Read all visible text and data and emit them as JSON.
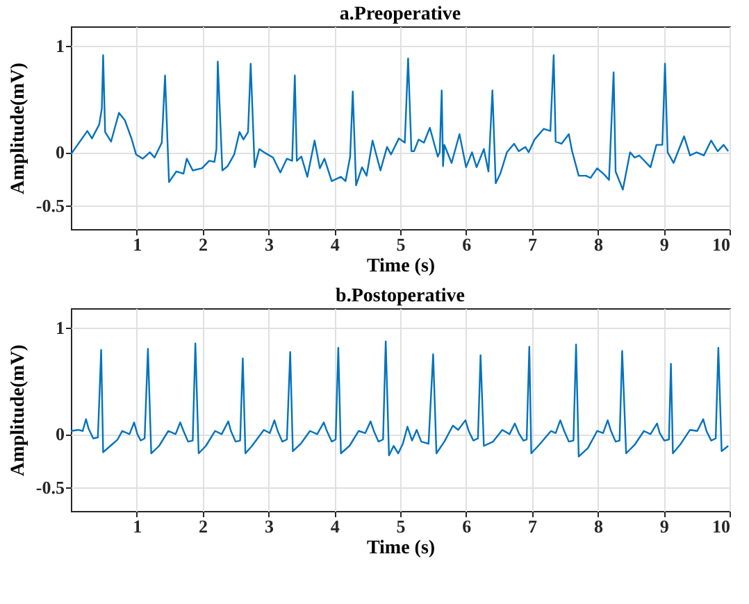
{
  "chart_data": [
    {
      "type": "line",
      "title": "a.Preoperative",
      "xlabel": "Time (s)",
      "ylabel": "Amplitude(mV)",
      "xlim": [
        0,
        10
      ],
      "ylim": [
        -0.72,
        1.18
      ],
      "xticks": [
        1,
        2,
        3,
        4,
        5,
        6,
        7,
        8,
        9,
        10
      ],
      "yticks": [
        -0.5,
        0,
        1
      ],
      "grid": true,
      "x": [
        0.0,
        0.25,
        0.32,
        0.43,
        0.47,
        0.49,
        0.52,
        0.61,
        0.73,
        0.82,
        0.92,
        0.99,
        1.09,
        1.2,
        1.27,
        1.38,
        1.43,
        1.49,
        1.6,
        1.71,
        1.76,
        1.85,
        1.99,
        2.1,
        2.18,
        2.21,
        2.23,
        2.3,
        2.38,
        2.48,
        2.56,
        2.62,
        2.69,
        2.73,
        2.79,
        2.86,
        2.96,
        3.07,
        3.18,
        3.28,
        3.36,
        3.4,
        3.43,
        3.5,
        3.59,
        3.7,
        3.78,
        3.85,
        3.96,
        4.1,
        4.17,
        4.24,
        4.28,
        4.33,
        4.42,
        4.49,
        4.58,
        4.7,
        4.8,
        4.86,
        4.98,
        5.07,
        5.12,
        5.17,
        5.21,
        5.28,
        5.36,
        5.45,
        5.57,
        5.6,
        5.63,
        5.65,
        5.67,
        5.78,
        5.9,
        6.0,
        6.09,
        6.16,
        6.27,
        6.34,
        6.4,
        6.45,
        6.52,
        6.62,
        6.73,
        6.8,
        6.9,
        6.95,
        7.04,
        7.18,
        7.28,
        7.33,
        7.36,
        7.45,
        7.56,
        7.61,
        7.71,
        7.82,
        7.89,
        7.99,
        8.1,
        8.17,
        8.24,
        8.27,
        8.38,
        8.49,
        8.56,
        8.63,
        8.8,
        8.89,
        8.98,
        9.02,
        9.06,
        9.15,
        9.31,
        9.4,
        9.5,
        9.61,
        9.72,
        9.82,
        9.91,
        9.98
      ],
      "series": [
        {
          "color": "#0072bd",
          "values": [
            -0.02,
            0.2,
            0.13,
            0.26,
            0.41,
            0.91,
            0.19,
            0.1,
            0.37,
            0.3,
            0.13,
            -0.02,
            -0.06,
            0.0,
            -0.05,
            0.09,
            0.72,
            -0.28,
            -0.18,
            -0.2,
            -0.06,
            -0.17,
            -0.15,
            -0.08,
            -0.09,
            0.03,
            0.85,
            -0.17,
            -0.13,
            -0.02,
            0.19,
            0.12,
            0.19,
            0.83,
            -0.14,
            0.03,
            -0.01,
            -0.05,
            -0.19,
            -0.06,
            -0.08,
            0.72,
            -0.08,
            -0.04,
            -0.23,
            0.11,
            -0.15,
            -0.06,
            -0.27,
            -0.23,
            -0.27,
            -0.04,
            0.57,
            -0.31,
            -0.14,
            -0.22,
            0.11,
            -0.17,
            0.05,
            -0.02,
            0.13,
            0.09,
            0.88,
            0.01,
            0.01,
            0.12,
            0.09,
            0.23,
            -0.04,
            0.0,
            0.58,
            -0.13,
            0.07,
            -0.1,
            0.17,
            -0.14,
            0.0,
            -0.14,
            0.03,
            -0.18,
            0.58,
            -0.29,
            -0.2,
            0.0,
            0.08,
            0.01,
            0.05,
            0.0,
            0.12,
            0.22,
            0.2,
            0.91,
            0.1,
            0.08,
            0.17,
            0.01,
            -0.22,
            -0.22,
            -0.24,
            -0.15,
            -0.21,
            -0.26,
            0.75,
            -0.18,
            -0.35,
            0.0,
            -0.05,
            -0.03,
            -0.14,
            0.07,
            0.07,
            0.83,
            0.0,
            -0.1,
            0.15,
            -0.03,
            0.0,
            -0.03,
            0.11,
            0.01,
            0.07,
            0.01
          ]
        }
      ]
    },
    {
      "type": "line",
      "title": "b.Postoperative",
      "xlabel": "Time (s)",
      "ylabel": "Amplitude(mV)",
      "xlim": [
        0,
        10
      ],
      "ylim": [
        -0.72,
        1.18
      ],
      "xticks": [
        1,
        2,
        3,
        4,
        5,
        6,
        7,
        8,
        9,
        10
      ],
      "yticks": [
        -0.5,
        0,
        1
      ],
      "grid": true,
      "x": [
        0.0,
        0.11,
        0.18,
        0.23,
        0.27,
        0.34,
        0.41,
        0.46,
        0.49,
        0.6,
        0.71,
        0.78,
        0.89,
        0.96,
        1.01,
        1.06,
        1.12,
        1.17,
        1.22,
        1.34,
        1.48,
        1.59,
        1.66,
        1.71,
        1.78,
        1.85,
        1.89,
        1.94,
        2.05,
        2.19,
        2.29,
        2.39,
        2.43,
        2.5,
        2.57,
        2.61,
        2.65,
        2.75,
        2.93,
        3.02,
        3.09,
        3.14,
        3.21,
        3.28,
        3.33,
        3.37,
        3.49,
        3.63,
        3.74,
        3.84,
        3.88,
        3.96,
        4.02,
        4.06,
        4.1,
        4.23,
        4.37,
        4.47,
        4.55,
        4.6,
        4.67,
        4.74,
        4.78,
        4.83,
        4.9,
        4.97,
        5.04,
        5.11,
        5.18,
        5.25,
        5.32,
        5.43,
        5.5,
        5.55,
        5.67,
        5.8,
        5.88,
        5.99,
        6.04,
        6.11,
        6.18,
        6.22,
        6.27,
        6.41,
        6.55,
        6.66,
        6.74,
        6.8,
        6.87,
        6.92,
        6.96,
        6.99,
        7.11,
        7.29,
        7.36,
        7.43,
        7.49,
        7.56,
        7.63,
        7.67,
        7.71,
        7.85,
        7.99,
        8.08,
        8.15,
        8.2,
        8.27,
        8.33,
        8.37,
        8.43,
        8.56,
        8.7,
        8.8,
        8.9,
        8.94,
        9.01,
        9.08,
        9.11,
        9.14,
        9.26,
        9.4,
        9.51,
        9.6,
        9.65,
        9.72,
        9.79,
        9.83,
        9.88,
        9.98
      ],
      "series": [
        {
          "color": "#0072bd",
          "values": [
            0.03,
            0.04,
            0.03,
            0.14,
            0.05,
            -0.04,
            -0.03,
            0.79,
            -0.17,
            -0.11,
            -0.05,
            0.03,
            0.0,
            0.11,
            0.0,
            -0.06,
            -0.04,
            0.8,
            -0.18,
            -0.11,
            0.03,
            0.0,
            0.11,
            0.03,
            -0.07,
            -0.06,
            0.85,
            -0.18,
            -0.11,
            0.03,
            0.0,
            0.12,
            0.03,
            -0.07,
            -0.06,
            0.71,
            -0.18,
            -0.11,
            0.04,
            0.01,
            0.13,
            0.03,
            -0.07,
            -0.05,
            0.77,
            -0.16,
            -0.09,
            0.03,
            0.0,
            0.11,
            0.04,
            -0.07,
            -0.05,
            0.81,
            -0.18,
            -0.11,
            0.03,
            0.01,
            0.12,
            0.03,
            -0.07,
            -0.05,
            0.87,
            -0.2,
            -0.11,
            -0.18,
            -0.09,
            0.07,
            -0.06,
            0.04,
            -0.07,
            -0.09,
            0.75,
            -0.18,
            -0.07,
            0.08,
            0.04,
            0.13,
            0.03,
            -0.06,
            -0.04,
            0.74,
            -0.11,
            -0.07,
            0.04,
            0.0,
            0.1,
            0.01,
            -0.06,
            -0.05,
            0.82,
            -0.18,
            -0.1,
            0.03,
            0.01,
            0.13,
            0.03,
            -0.07,
            -0.06,
            0.84,
            -0.21,
            -0.13,
            0.03,
            0.01,
            0.13,
            0.03,
            -0.07,
            -0.06,
            0.78,
            -0.18,
            -0.1,
            0.03,
            0.0,
            0.1,
            0.01,
            -0.06,
            -0.05,
            0.66,
            -0.18,
            -0.09,
            0.04,
            0.03,
            0.14,
            0.03,
            -0.06,
            -0.04,
            0.81,
            -0.16,
            -0.11
          ]
        }
      ]
    }
  ]
}
